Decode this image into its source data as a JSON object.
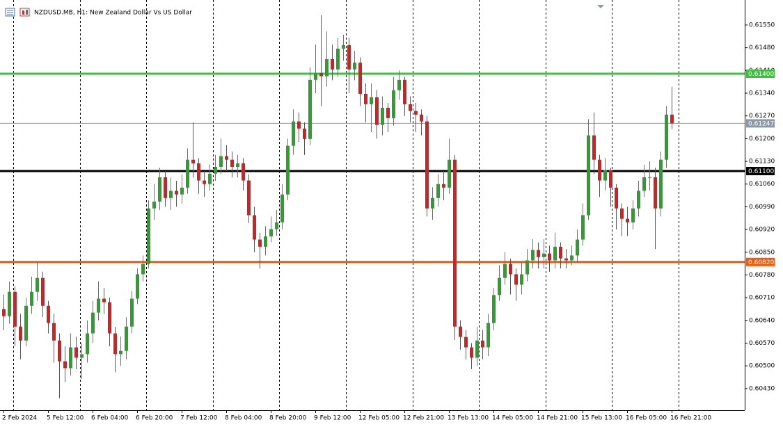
{
  "chart_data": {
    "type": "candlestick",
    "title": "NZDUSD.MB, H1:  New Zealand Dollar Vs US Dollar",
    "up_color": "#2e9e2e",
    "down_color": "#d42020",
    "ylim": [
      0.60374,
      0.61627
    ],
    "yticks": [
      {
        "value": 0.6155,
        "label": "0.61550"
      },
      {
        "value": 0.6148,
        "label": "0.61480"
      },
      {
        "value": 0.6141,
        "label": "0.61410"
      },
      {
        "value": 0.6134,
        "label": "0.61340"
      },
      {
        "value": 0.6127,
        "label": "0.61270"
      },
      {
        "value": 0.612,
        "label": "0.61200"
      },
      {
        "value": 0.6113,
        "label": "0.61130"
      },
      {
        "value": 0.6106,
        "label": "0.61060"
      },
      {
        "value": 0.6099,
        "label": "0.60990"
      },
      {
        "value": 0.6092,
        "label": "0.60920"
      },
      {
        "value": 0.6085,
        "label": "0.60850"
      },
      {
        "value": 0.6078,
        "label": "0.60780"
      },
      {
        "value": 0.6071,
        "label": "0.60710"
      },
      {
        "value": 0.6064,
        "label": "0.60640"
      },
      {
        "value": 0.6057,
        "label": "0.60570"
      },
      {
        "value": 0.605,
        "label": "0.60500"
      },
      {
        "value": 0.6043,
        "label": "0.60430"
      }
    ],
    "levels": [
      {
        "value": 0.614,
        "label": "0.61400",
        "color": "#3cbf3c"
      },
      {
        "value": 0.61247,
        "label": "0.61247",
        "color": "#8a9aa6"
      },
      {
        "value": 0.611,
        "label": "0.61100",
        "color": "#000000"
      },
      {
        "value": 0.6082,
        "label": "0.60820",
        "color": "#f05a0a"
      }
    ],
    "categories": [
      "2 Feb 2024",
      null,
      null,
      null,
      null,
      null,
      null,
      null,
      "5 Feb 12:00",
      null,
      null,
      null,
      null,
      null,
      null,
      null,
      "6 Feb 04:00",
      null,
      null,
      null,
      null,
      null,
      null,
      null,
      "6 Feb 20:00",
      null,
      null,
      null,
      null,
      null,
      null,
      null,
      "7 Feb 12:00",
      null,
      null,
      null,
      null,
      null,
      null,
      null,
      "8 Feb 04:00",
      null,
      null,
      null,
      null,
      null,
      null,
      null,
      "8 Feb 20:00",
      null,
      null,
      null,
      null,
      null,
      null,
      null,
      "9 Feb 12:00",
      null,
      null,
      null,
      null,
      null,
      null,
      null,
      "12 Feb 05:00",
      null,
      null,
      null,
      null,
      null,
      null,
      null,
      "12 Feb 21:00",
      null,
      null,
      null,
      null,
      null,
      null,
      null,
      "13 Feb 13:00",
      null,
      null,
      null,
      null,
      null,
      null,
      null,
      "14 Feb 05:00",
      null,
      null,
      null,
      null,
      null,
      null,
      null,
      "14 Feb 21:00",
      null,
      null,
      null,
      null,
      null,
      null,
      null,
      "15 Feb 13:00",
      null,
      null,
      null,
      null,
      null,
      null,
      null,
      "16 Feb 05:00",
      null,
      null,
      null,
      null,
      null,
      null,
      null,
      "16 Feb 21:00"
    ],
    "open": [
      0.60675,
      0.60653,
      0.60728,
      0.60621,
      0.60578,
      0.60685,
      0.60728,
      0.60771,
      0.60685,
      0.60632,
      0.60578,
      0.60514,
      0.60493,
      0.60557,
      0.60525,
      0.60536,
      0.606,
      0.60664,
      0.60707,
      0.60696,
      0.606,
      0.60536,
      0.60546,
      0.60621,
      0.60707,
      0.60782,
      0.60814,
      0.60985,
      0.61006,
      0.61081,
      0.61017,
      0.61039,
      0.61028,
      0.61049,
      0.61135,
      0.61124,
      0.61071,
      0.6106,
      0.61092,
      0.61113,
      0.61146,
      0.61135,
      0.61113,
      0.61124,
      0.61071,
      0.60964,
      0.60889,
      0.60867,
      0.60899,
      0.60921,
      0.60942,
      0.61028,
      0.61178,
      0.61253,
      0.61231,
      0.61199,
      0.61381,
      0.61402,
      0.61392,
      0.61445,
      0.61413,
      0.61477,
      0.61488,
      0.61413,
      0.61434,
      0.61338,
      0.61306,
      0.61327,
      0.61242,
      0.61295,
      0.61263,
      0.61349,
      0.61381,
      0.61306,
      0.61285,
      0.61274,
      0.61253,
      0.60985,
      0.61017,
      0.6106,
      0.61049,
      0.61135,
      0.60621,
      0.60589,
      0.60557,
      0.60525,
      0.60578,
      0.60557,
      0.60632,
      0.60718,
      0.60771,
      0.60814,
      0.60782,
      0.6075,
      0.60782,
      0.60825,
      0.60857,
      0.60835,
      0.60846,
      0.60825,
      0.60867,
      0.60831,
      0.60825,
      0.6084,
      0.60889,
      0.60964,
      0.6121,
      0.61135,
      0.61071,
      0.61103,
      0.61049,
      0.60985,
      0.60953,
      0.60942,
      0.60985,
      0.61039,
      0.61081,
      0.61081,
      0.60985,
      0.61135,
      0.61274
    ],
    "high": [
      0.6072,
      0.6076,
      0.60745,
      0.6066,
      0.6071,
      0.60775,
      0.6082,
      0.6079,
      0.607,
      0.6066,
      0.606,
      0.6056,
      0.606,
      0.6059,
      0.6057,
      0.6064,
      0.607,
      0.6076,
      0.6074,
      0.6071,
      0.6062,
      0.6059,
      0.6065,
      0.6073,
      0.608,
      0.6084,
      0.6101,
      0.6106,
      0.6111,
      0.611,
      0.6108,
      0.6107,
      0.6109,
      0.6117,
      0.6125,
      0.6114,
      0.611,
      0.6112,
      0.6115,
      0.612,
      0.6118,
      0.6116,
      0.6115,
      0.6114,
      0.6109,
      0.6099,
      0.6091,
      0.6093,
      0.6096,
      0.6098,
      0.6106,
      0.612,
      0.6129,
      0.6128,
      0.6125,
      0.6142,
      0.6149,
      0.6158,
      0.6153,
      0.6149,
      0.6151,
      0.6152,
      0.6151,
      0.6147,
      0.6145,
      0.6137,
      0.6137,
      0.6135,
      0.6133,
      0.6131,
      0.6139,
      0.6141,
      0.6139,
      0.6133,
      0.6131,
      0.6129,
      0.6127,
      0.6105,
      0.6109,
      0.611,
      0.612,
      0.6115,
      0.6064,
      0.6061,
      0.6057,
      0.6062,
      0.6061,
      0.6066,
      0.6074,
      0.6081,
      0.6085,
      0.6083,
      0.608,
      0.6082,
      0.6086,
      0.6089,
      0.6088,
      0.6089,
      0.6087,
      0.6091,
      0.6088,
      0.6086,
      0.6087,
      0.6092,
      0.61,
      0.6126,
      0.6128,
      0.6115,
      0.6114,
      0.6111,
      0.6106,
      0.61,
      0.6099,
      0.6101,
      0.6107,
      0.6112,
      0.6113,
      0.6111,
      0.6116,
      0.613,
      0.6136
    ],
    "low": [
      0.6061,
      0.6063,
      0.6056,
      0.6052,
      0.6056,
      0.6066,
      0.607,
      0.6065,
      0.606,
      0.6051,
      0.604,
      0.6045,
      0.6047,
      0.6049,
      0.6046,
      0.6051,
      0.6057,
      0.6064,
      0.6066,
      0.6056,
      0.6048,
      0.605,
      0.6052,
      0.606,
      0.6069,
      0.6076,
      0.608,
      0.6095,
      0.6098,
      0.6099,
      0.6098,
      0.6099,
      0.61,
      0.6103,
      0.6108,
      0.6103,
      0.6102,
      0.6104,
      0.6107,
      0.6109,
      0.611,
      0.6108,
      0.6108,
      0.6104,
      0.6094,
      0.6085,
      0.608,
      0.6084,
      0.6088,
      0.609,
      0.6092,
      0.6101,
      0.6115,
      0.6119,
      0.6115,
      0.6118,
      0.6134,
      0.613,
      0.6136,
      0.6138,
      0.6139,
      0.6144,
      0.6134,
      0.6138,
      0.613,
      0.6125,
      0.6122,
      0.612,
      0.6121,
      0.6122,
      0.6124,
      0.6132,
      0.6127,
      0.6125,
      0.6122,
      0.6121,
      0.6096,
      0.6095,
      0.6099,
      0.6101,
      0.6103,
      0.6058,
      0.6055,
      0.6052,
      0.6049,
      0.605,
      0.6052,
      0.6053,
      0.6061,
      0.607,
      0.6075,
      0.6072,
      0.607,
      0.6072,
      0.6076,
      0.608,
      0.608,
      0.608,
      0.6079,
      0.608,
      0.608,
      0.608,
      0.6081,
      0.6082,
      0.6087,
      0.6095,
      0.6109,
      0.6102,
      0.6104,
      0.6099,
      0.6092,
      0.609,
      0.609,
      0.6092,
      0.6096,
      0.6102,
      0.6104,
      0.6086,
      0.6096,
      0.6111,
      0.6123
    ],
    "close": [
      0.60653,
      0.60728,
      0.60621,
      0.60578,
      0.60685,
      0.60728,
      0.60771,
      0.60685,
      0.60632,
      0.60578,
      0.60514,
      0.60493,
      0.60557,
      0.60525,
      0.60536,
      0.606,
      0.60664,
      0.60707,
      0.60696,
      0.606,
      0.60536,
      0.60546,
      0.60621,
      0.60707,
      0.60782,
      0.60814,
      0.60985,
      0.61006,
      0.61081,
      0.61017,
      0.61039,
      0.61028,
      0.61049,
      0.61135,
      0.61124,
      0.61071,
      0.6106,
      0.61092,
      0.61113,
      0.61146,
      0.61135,
      0.61113,
      0.61124,
      0.61071,
      0.60964,
      0.60889,
      0.60867,
      0.60899,
      0.60921,
      0.60942,
      0.61028,
      0.61178,
      0.61253,
      0.61231,
      0.61199,
      0.61381,
      0.61402,
      0.61392,
      0.61445,
      0.61413,
      0.61477,
      0.61488,
      0.61413,
      0.61434,
      0.61338,
      0.61306,
      0.61327,
      0.61242,
      0.61295,
      0.61263,
      0.61349,
      0.61381,
      0.61306,
      0.61285,
      0.61274,
      0.61253,
      0.60985,
      0.61017,
      0.6106,
      0.61049,
      0.61135,
      0.60621,
      0.60589,
      0.60557,
      0.60525,
      0.60578,
      0.60557,
      0.60632,
      0.60718,
      0.60771,
      0.60814,
      0.60782,
      0.6075,
      0.60782,
      0.60825,
      0.60857,
      0.60835,
      0.60846,
      0.60825,
      0.60867,
      0.60831,
      0.60825,
      0.6084,
      0.60889,
      0.60964,
      0.6121,
      0.61135,
      0.61071,
      0.61103,
      0.61049,
      0.60985,
      0.60953,
      0.60942,
      0.60985,
      0.61039,
      0.61081,
      0.61081,
      0.60985,
      0.61135,
      0.61274,
      0.61247
    ]
  }
}
